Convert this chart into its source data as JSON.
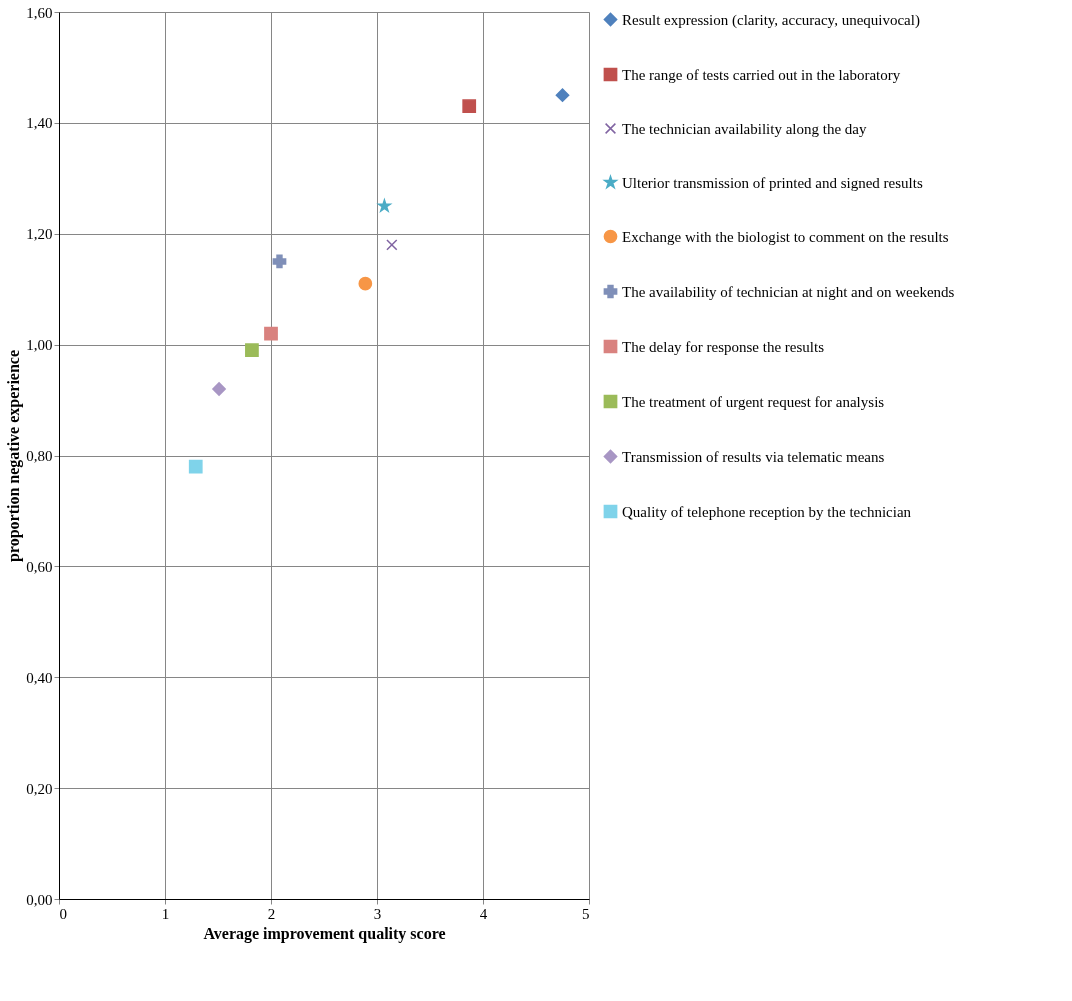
{
  "chart_data": {
    "type": "scatter",
    "xlabel": "Average improvement quality score",
    "ylabel": "proportion negative experience",
    "xlim": [
      0,
      5
    ],
    "xticks": [
      0,
      1,
      2,
      3,
      4,
      5
    ],
    "ylim": [
      0,
      1.6
    ],
    "yticks": [
      {
        "value": 0,
        "label": "0,00"
      },
      {
        "value": 0.2,
        "label": "0,20"
      },
      {
        "value": 0.4,
        "label": "0,40"
      },
      {
        "value": 0.6,
        "label": "0,60"
      },
      {
        "value": 0.8,
        "label": "0,80"
      },
      {
        "value": 1.0,
        "label": "1,00"
      },
      {
        "value": 1.2,
        "label": "1,20"
      },
      {
        "value": 1.4,
        "label": "1,40"
      },
      {
        "value": 1.6,
        "label": "1,60"
      }
    ],
    "grid": true,
    "legend": "right",
    "series": [
      {
        "name": "Result expression (clarity, accuracy, unequivocal)",
        "color": "#4f81bd",
        "marker": "diamond",
        "x": [
          4.75
        ],
        "values": [
          1.45
        ]
      },
      {
        "name": "The range of tests carried out in the laboratory",
        "color": "#c0504d",
        "marker": "square",
        "x": [
          3.87
        ],
        "values": [
          1.43
        ]
      },
      {
        "name": "The technician availability along the day",
        "color": "#8064a2",
        "marker": "x",
        "x": [
          3.14
        ],
        "values": [
          1.18
        ]
      },
      {
        "name": "Ulterior transmission of printed and signed results",
        "color": "#4bacc6",
        "marker": "star",
        "x": [
          3.07
        ],
        "values": [
          1.25
        ]
      },
      {
        "name": "Exchange with the biologist to comment on the results",
        "color": "#f79646",
        "marker": "circle",
        "x": [
          2.89
        ],
        "values": [
          1.11
        ]
      },
      {
        "name": "The availability of technician at night and on weekends",
        "color": "#7f8fb8",
        "marker": "cross",
        "x": [
          2.08
        ],
        "values": [
          1.15
        ]
      },
      {
        "name": "The delay for response the results",
        "color": "#d9827f",
        "marker": "square",
        "x": [
          2.0
        ],
        "values": [
          1.02
        ]
      },
      {
        "name": "The treatment of urgent request for analysis",
        "color": "#9bbb59",
        "marker": "square",
        "x": [
          1.82
        ],
        "values": [
          0.99
        ]
      },
      {
        "name": "Transmission of results via telematic means",
        "color": "#a896c4",
        "marker": "diamond",
        "x": [
          1.51
        ],
        "values": [
          0.92
        ]
      },
      {
        "name": "Quality of telephone reception by the technician",
        "color": "#7fd3ea",
        "marker": "square",
        "x": [
          1.29
        ],
        "values": [
          0.78
        ]
      }
    ]
  }
}
